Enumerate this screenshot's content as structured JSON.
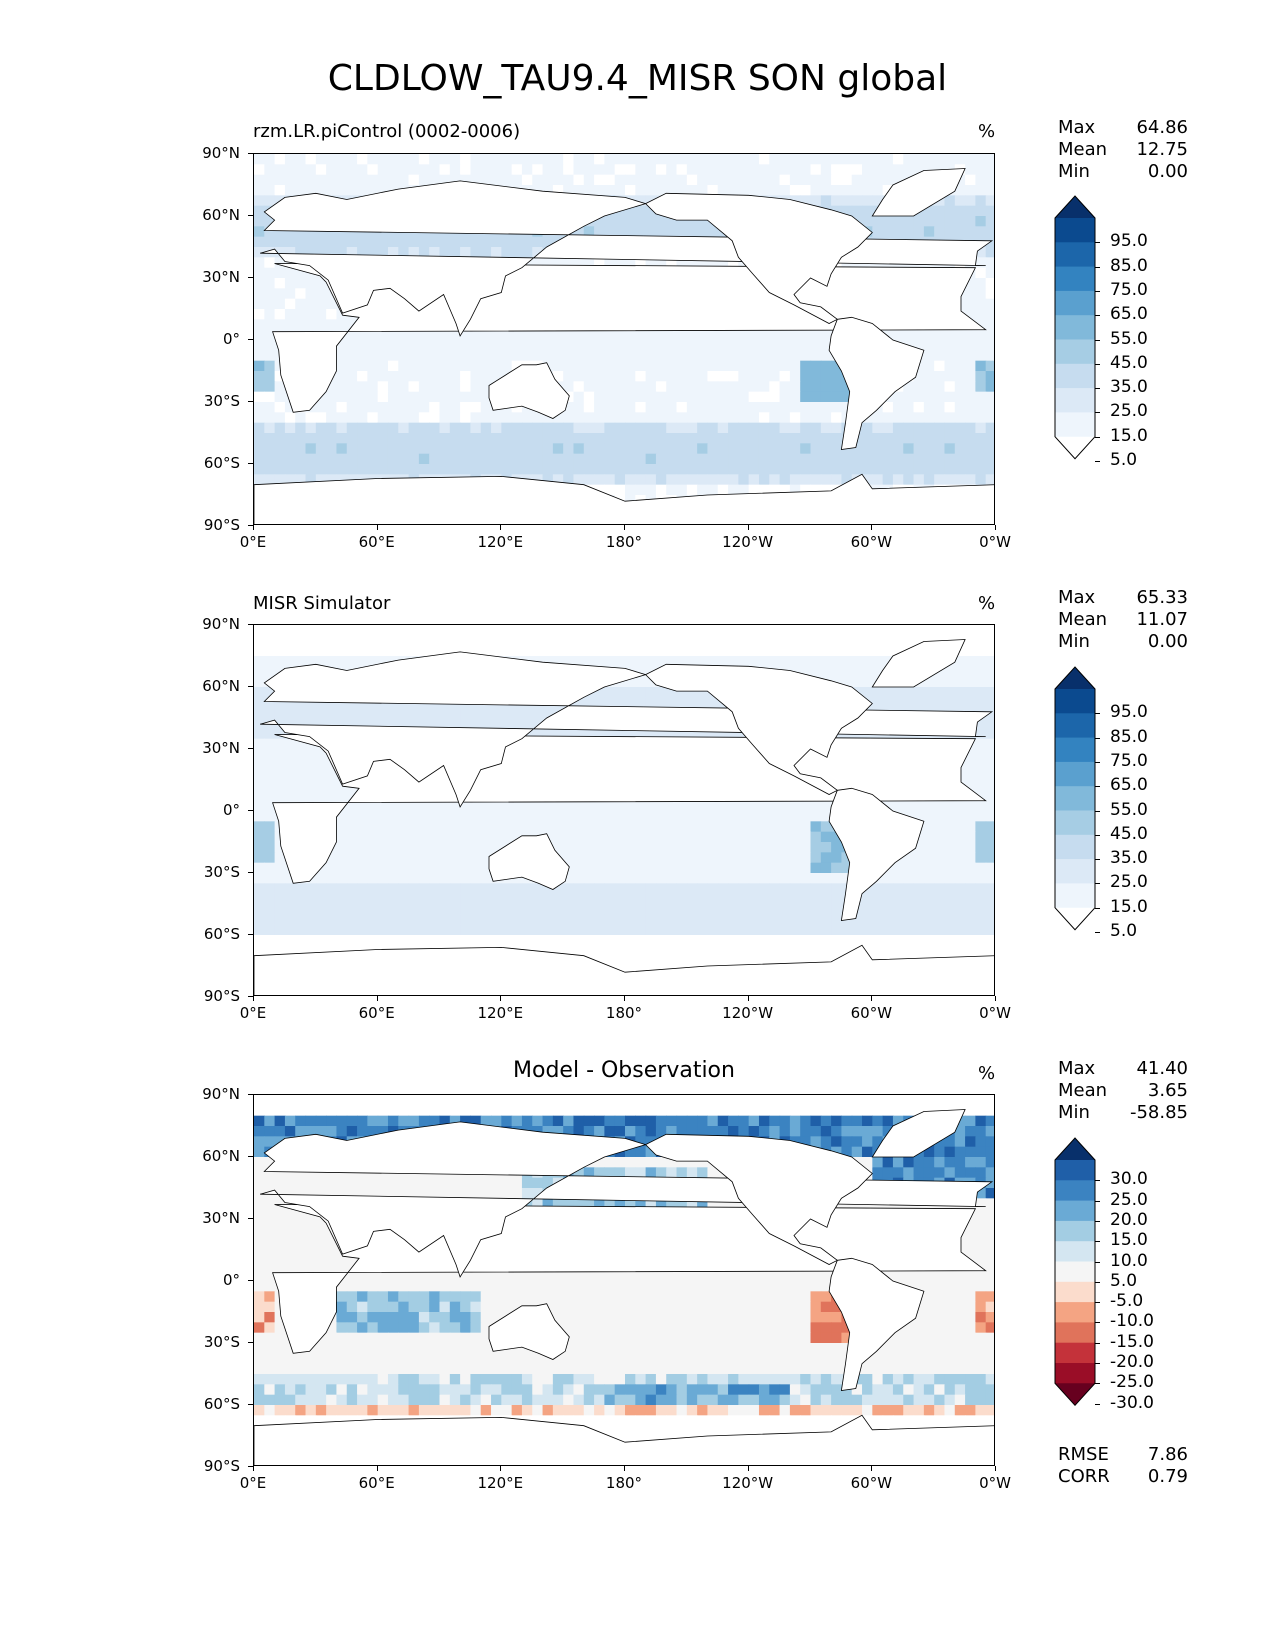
{
  "figure": {
    "title": "CLDLOW_TAU9.4_MISR SON global"
  },
  "chart_data": [
    {
      "type": "heatmap",
      "title": "rzm.LR.piControl (0002-0006)",
      "units": "%",
      "lat_ticks": [
        "90°N",
        "60°N",
        "30°N",
        "0°",
        "30°S",
        "60°S",
        "90°S"
      ],
      "lon_ticks": [
        "0°E",
        "60°E",
        "120°E",
        "180°",
        "120°W",
        "60°W",
        "0°W"
      ],
      "stats": [
        {
          "label": "Max",
          "value": "64.86"
        },
        {
          "label": "Mean",
          "value": "12.75"
        },
        {
          "label": "Min",
          "value": "0.00"
        }
      ],
      "colorbar": {
        "levels": [
          "95.0",
          "85.0",
          "75.0",
          "65.0",
          "55.0",
          "45.0",
          "35.0",
          "25.0",
          "15.0",
          "5.0"
        ],
        "colors": [
          "#08306b",
          "#0b4a8f",
          "#1c66aa",
          "#3383c0",
          "#5aa0cf",
          "#81b9da",
          "#a6cde4",
          "#c6dcef",
          "#dce9f6",
          "#eef5fc",
          "#ffffff"
        ]
      }
    },
    {
      "type": "heatmap",
      "title": "MISR Simulator",
      "units": "%",
      "lat_ticks": [
        "90°N",
        "60°N",
        "30°N",
        "0°",
        "30°S",
        "60°S",
        "90°S"
      ],
      "lon_ticks": [
        "0°E",
        "60°E",
        "120°E",
        "180°",
        "120°W",
        "60°W",
        "0°W"
      ],
      "stats": [
        {
          "label": "Max",
          "value": "65.33"
        },
        {
          "label": "Mean",
          "value": "11.07"
        },
        {
          "label": "Min",
          "value": "0.00"
        }
      ],
      "colorbar": {
        "levels": [
          "95.0",
          "85.0",
          "75.0",
          "65.0",
          "55.0",
          "45.0",
          "35.0",
          "25.0",
          "15.0",
          "5.0"
        ],
        "colors": [
          "#08306b",
          "#0b4a8f",
          "#1c66aa",
          "#3383c0",
          "#5aa0cf",
          "#81b9da",
          "#a6cde4",
          "#c6dcef",
          "#dce9f6",
          "#eef5fc",
          "#ffffff"
        ]
      }
    },
    {
      "type": "heatmap",
      "title": "Model - Observation",
      "units": "%",
      "lat_ticks": [
        "90°N",
        "60°N",
        "30°N",
        "0°",
        "30°S",
        "60°S",
        "90°S"
      ],
      "lon_ticks": [
        "0°E",
        "60°E",
        "120°E",
        "180°",
        "120°W",
        "60°W",
        "0°W"
      ],
      "stats": [
        {
          "label": "Max",
          "value": "41.40"
        },
        {
          "label": "Mean",
          "value": "3.65"
        },
        {
          "label": "Min",
          "value": "-58.85"
        }
      ],
      "extra_stats": [
        {
          "label": "RMSE",
          "value": "7.86"
        },
        {
          "label": "CORR",
          "value": "0.79"
        }
      ],
      "colorbar": {
        "levels": [
          "30.0",
          "25.0",
          "20.0",
          "15.0",
          "10.0",
          "5.0",
          "-5.0",
          "-10.0",
          "-15.0",
          "-20.0",
          "-25.0",
          "-30.0"
        ],
        "colors": [
          "#08306b",
          "#1f5fa8",
          "#3b83c1",
          "#6aaad5",
          "#a3cde3",
          "#d4e6f1",
          "#f5f5f5",
          "#fbdccc",
          "#f4a483",
          "#e0735b",
          "#c4323a",
          "#9a0d27",
          "#67001f"
        ]
      }
    }
  ]
}
